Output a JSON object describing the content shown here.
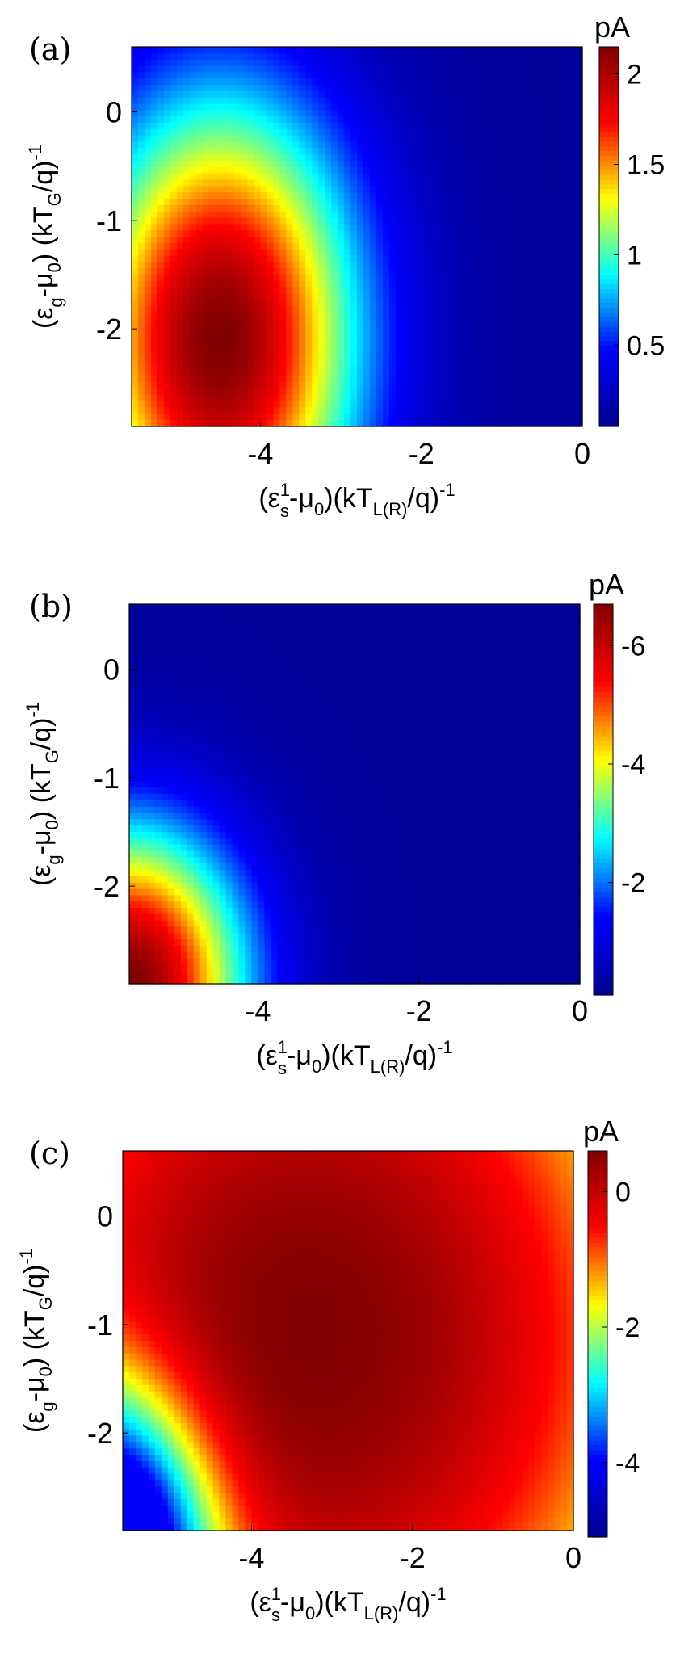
{
  "chart_data": [
    {
      "type": "heatmap",
      "panel_label": "(a)",
      "units": "pA",
      "xlabel": {
        "main": "(ε",
        "sup": "1",
        "sub": "s",
        "mid": "-μ",
        "sub2": "0",
        "rest": ")(kT",
        "sub3": "L(R)",
        "tail": "/q)",
        "sup2": "-1"
      },
      "ylabel": {
        "main": "(ε",
        "sub": "g",
        "mid": "-μ",
        "sub2": "0",
        "rest": ") (kT",
        "sub3": "G",
        "tail": "/q)",
        "sup2": "-1"
      },
      "xlim": [
        -5.6,
        0
      ],
      "ylim": [
        -2.9,
        0.6
      ],
      "xticks": [
        "-4",
        "-2",
        "0"
      ],
      "xtick_values": [
        -4,
        -2,
        0
      ],
      "yticks": [
        "0",
        "-1",
        "-2"
      ],
      "ytick_values": [
        0,
        -1,
        -2
      ],
      "colorbar_range": [
        0.05,
        2.15
      ],
      "colorbar_ticks": [
        "2",
        "1.5",
        "1",
        "0.5"
      ],
      "colorbar_tick_values": [
        2,
        1.5,
        1,
        0.5
      ],
      "model": {
        "form": "gaussian",
        "peak": [
          -4.5,
          -2.1
        ],
        "amplitude": 2.1,
        "base": 0.05,
        "sx": 1.7,
        "sy": 2.2
      }
    },
    {
      "type": "heatmap",
      "panel_label": "(b)",
      "units": "pA",
      "xlabel": {
        "main": "(ε",
        "sup": "1",
        "sub": "s",
        "mid": "-μ",
        "sub2": "0",
        "rest": ")(kT",
        "sub3": "L(R)",
        "tail": "/q)",
        "sup2": "-1"
      },
      "ylabel": {
        "main": "(ε",
        "sub": "g",
        "mid": "-μ",
        "sub2": "0",
        "rest": ") (kT",
        "sub3": "G",
        "tail": "/q)",
        "sup2": "-1"
      },
      "xlim": [
        -5.6,
        0
      ],
      "ylim": [
        -2.9,
        0.6
      ],
      "xticks": [
        "-4",
        "-2",
        "0"
      ],
      "xtick_values": [
        -4,
        -2,
        0
      ],
      "yticks": [
        "0",
        "-1",
        "-2"
      ],
      "ytick_values": [
        0,
        -1,
        -2
      ],
      "colorbar_range": [
        -0.1,
        -6.7
      ],
      "colorbar_ticks": [
        "-6",
        "-4",
        "-2"
      ],
      "colorbar_tick_values": [
        -6,
        -4,
        -2
      ],
      "model": {
        "form": "corner",
        "peak": [
          -5.6,
          -2.9
        ],
        "amplitude": -6.5,
        "base": -0.1,
        "sx": 1.5,
        "sy": 1.5
      }
    },
    {
      "type": "heatmap",
      "panel_label": "(c)",
      "units": "pA",
      "xlabel": {
        "main": "(ε",
        "sup": "1",
        "sub": "s",
        "mid": "-μ",
        "sub2": "0",
        "rest": ")(kT",
        "sub3": "L(R)",
        "tail": "/q)",
        "sup2": "-1"
      },
      "ylabel": {
        "main": "(ε",
        "sub": "g",
        "mid": "-μ",
        "sub2": "0",
        "rest": ") (kT",
        "sub3": "G",
        "tail": "/q)",
        "sup2": "-1"
      },
      "xlim": [
        -5.6,
        0
      ],
      "ylim": [
        -2.9,
        0.6
      ],
      "xticks": [
        "-4",
        "-2",
        "0"
      ],
      "xtick_values": [
        -4,
        -2,
        0
      ],
      "yticks": [
        "0",
        "-1",
        "-2"
      ],
      "ytick_values": [
        0,
        -1,
        -2
      ],
      "colorbar_range": [
        -5.1,
        0.6
      ],
      "colorbar_ticks": [
        "0",
        "-2",
        "-4"
      ],
      "colorbar_tick_values": [
        0,
        -2,
        -4
      ],
      "model": {
        "form": "saddle",
        "peak": [
          -3.3,
          -1.1
        ],
        "amplitude": 0.5,
        "base": 0.0,
        "sx": 1.6,
        "sy": 1.4
      }
    }
  ],
  "colormap": [
    "#00008f",
    "#0000ff",
    "#00ffff",
    "#ffff00",
    "#ff0000",
    "#800000"
  ]
}
